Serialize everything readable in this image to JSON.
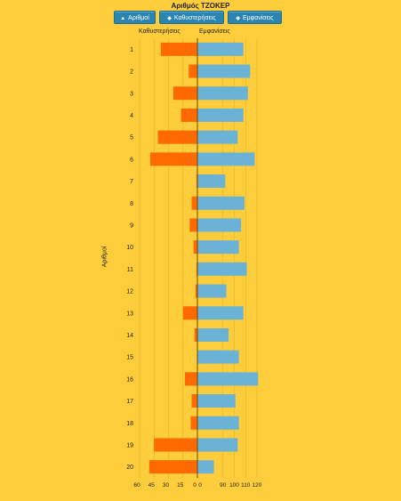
{
  "chart_data": {
    "type": "bar",
    "title": "Αριθμός ΤΖΟΚΕΡ",
    "ylabel": "Αριθμοί",
    "left_header": "Καθυστερήσεις",
    "right_header": "Εμφανίσεις",
    "categories": [
      "1",
      "2",
      "3",
      "4",
      "5",
      "6",
      "7",
      "8",
      "9",
      "10",
      "11",
      "12",
      "13",
      "14",
      "15",
      "16",
      "17",
      "18",
      "19",
      "20"
    ],
    "series": [
      {
        "name": "Καθυστερήσεις",
        "values": [
          38,
          9,
          25,
          17,
          41,
          49,
          1,
          6,
          8,
          4,
          1,
          2,
          15,
          3,
          0,
          13,
          6,
          7,
          45,
          50
        ],
        "color": "#ff6a00"
      },
      {
        "name": "Εμφανίσεις",
        "values": [
          108,
          114,
          112,
          108,
          103,
          118,
          92,
          109,
          106,
          104,
          111,
          93,
          108,
          95,
          104,
          121,
          101,
          104,
          103,
          82
        ],
        "color": "#6ab2d6"
      }
    ],
    "left_ticks": [
      "60",
      "45",
      "30",
      "15",
      "0"
    ],
    "right_ticks": [
      "90",
      "100",
      "110",
      "120"
    ],
    "right_axis_origin_label": "0",
    "left_xlim": [
      0,
      60
    ],
    "right_xlim": [
      80,
      125
    ],
    "grid": true
  },
  "buttons": [
    {
      "label": "Αριθμοί",
      "icon": "▲"
    },
    {
      "label": "Καθυστερήσεις",
      "icon": "◆"
    },
    {
      "label": "Εμφανίσεις",
      "icon": "◆"
    }
  ]
}
